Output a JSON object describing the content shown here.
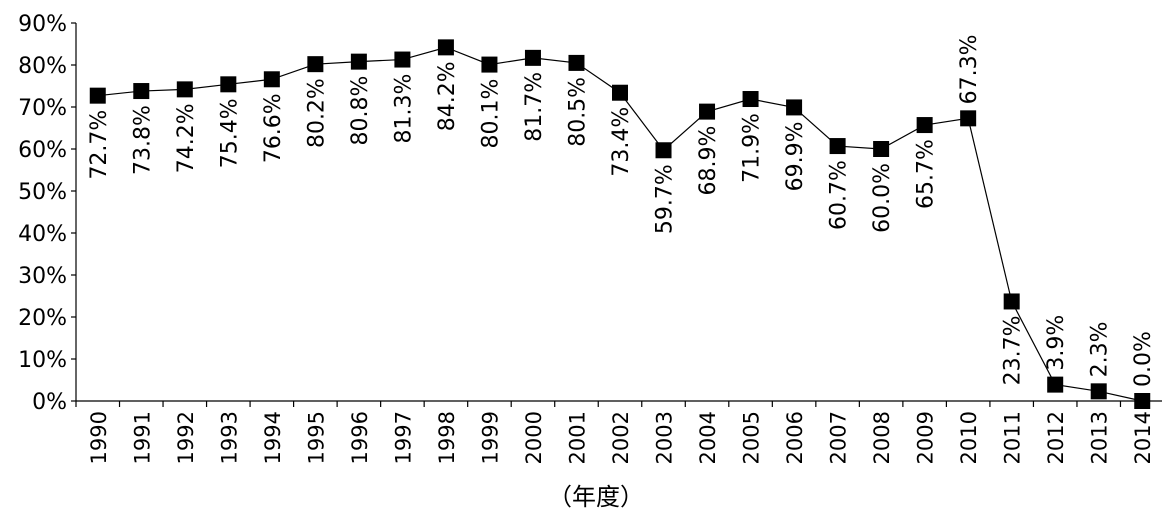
{
  "chart_data": {
    "type": "line",
    "title": "",
    "xlabel": "（年度）",
    "ylabel": "",
    "ylim": [
      0,
      90
    ],
    "y_ticks": [
      0,
      10,
      20,
      30,
      40,
      50,
      60,
      70,
      80,
      90
    ],
    "y_tick_labels": [
      "0%",
      "10%",
      "20%",
      "30%",
      "40%",
      "50%",
      "60%",
      "70%",
      "80%",
      "90%"
    ],
    "grid": false,
    "legend": "none",
    "marker": "square",
    "line_color": "#000000",
    "marker_color": "#000000",
    "categories": [
      "1990",
      "1991",
      "1992",
      "1993",
      "1994",
      "1995",
      "1996",
      "1997",
      "1998",
      "1999",
      "2000",
      "2001",
      "2002",
      "2003",
      "2004",
      "2005",
      "2006",
      "2007",
      "2008",
      "2009",
      "2010",
      "2011",
      "2012",
      "2013",
      "2014"
    ],
    "series": [
      {
        "values": [
          72.7,
          73.8,
          74.2,
          75.4,
          76.6,
          80.2,
          80.8,
          81.3,
          84.2,
          80.1,
          81.7,
          80.5,
          73.4,
          59.7,
          68.9,
          71.9,
          69.9,
          60.7,
          60.0,
          65.7,
          67.3,
          23.7,
          3.9,
          2.3,
          0.0
        ],
        "data_labels": [
          "72.7%",
          "73.8%",
          "74.2%",
          "75.4%",
          "76.6%",
          "80.2%",
          "80.8%",
          "81.3%",
          "84.2%",
          "80.1%",
          "81.7%",
          "80.5%",
          "73.4%",
          "59.7%",
          "68.9%",
          "71.9%",
          "69.9%",
          "60.7%",
          "60.0%",
          "65.7%",
          "67.3%",
          "23.7%",
          "3.9%",
          "2.3%",
          "0.0%"
        ]
      }
    ]
  }
}
